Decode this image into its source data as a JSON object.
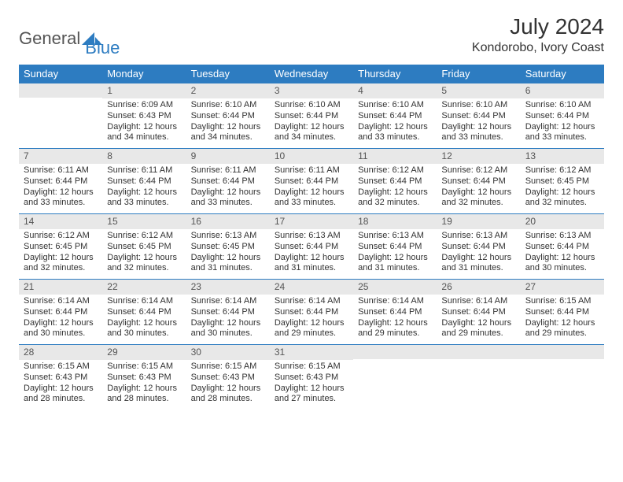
{
  "logo": {
    "text1": "General",
    "text2": "Blue"
  },
  "title": "July 2024",
  "location": "Kondorobo, Ivory Coast",
  "colors": {
    "header_bg": "#2d7cc1",
    "header_text": "#ffffff",
    "daynum_bg": "#e8e8e8",
    "border": "#2d7cc1",
    "text": "#333333"
  },
  "dayNames": [
    "Sunday",
    "Monday",
    "Tuesday",
    "Wednesday",
    "Thursday",
    "Friday",
    "Saturday"
  ],
  "weeks": [
    [
      {
        "n": "",
        "sunrise": "",
        "sunset": "",
        "daylight": ""
      },
      {
        "n": "1",
        "sunrise": "Sunrise: 6:09 AM",
        "sunset": "Sunset: 6:43 PM",
        "daylight": "Daylight: 12 hours and 34 minutes."
      },
      {
        "n": "2",
        "sunrise": "Sunrise: 6:10 AM",
        "sunset": "Sunset: 6:44 PM",
        "daylight": "Daylight: 12 hours and 34 minutes."
      },
      {
        "n": "3",
        "sunrise": "Sunrise: 6:10 AM",
        "sunset": "Sunset: 6:44 PM",
        "daylight": "Daylight: 12 hours and 34 minutes."
      },
      {
        "n": "4",
        "sunrise": "Sunrise: 6:10 AM",
        "sunset": "Sunset: 6:44 PM",
        "daylight": "Daylight: 12 hours and 33 minutes."
      },
      {
        "n": "5",
        "sunrise": "Sunrise: 6:10 AM",
        "sunset": "Sunset: 6:44 PM",
        "daylight": "Daylight: 12 hours and 33 minutes."
      },
      {
        "n": "6",
        "sunrise": "Sunrise: 6:10 AM",
        "sunset": "Sunset: 6:44 PM",
        "daylight": "Daylight: 12 hours and 33 minutes."
      }
    ],
    [
      {
        "n": "7",
        "sunrise": "Sunrise: 6:11 AM",
        "sunset": "Sunset: 6:44 PM",
        "daylight": "Daylight: 12 hours and 33 minutes."
      },
      {
        "n": "8",
        "sunrise": "Sunrise: 6:11 AM",
        "sunset": "Sunset: 6:44 PM",
        "daylight": "Daylight: 12 hours and 33 minutes."
      },
      {
        "n": "9",
        "sunrise": "Sunrise: 6:11 AM",
        "sunset": "Sunset: 6:44 PM",
        "daylight": "Daylight: 12 hours and 33 minutes."
      },
      {
        "n": "10",
        "sunrise": "Sunrise: 6:11 AM",
        "sunset": "Sunset: 6:44 PM",
        "daylight": "Daylight: 12 hours and 33 minutes."
      },
      {
        "n": "11",
        "sunrise": "Sunrise: 6:12 AM",
        "sunset": "Sunset: 6:44 PM",
        "daylight": "Daylight: 12 hours and 32 minutes."
      },
      {
        "n": "12",
        "sunrise": "Sunrise: 6:12 AM",
        "sunset": "Sunset: 6:44 PM",
        "daylight": "Daylight: 12 hours and 32 minutes."
      },
      {
        "n": "13",
        "sunrise": "Sunrise: 6:12 AM",
        "sunset": "Sunset: 6:45 PM",
        "daylight": "Daylight: 12 hours and 32 minutes."
      }
    ],
    [
      {
        "n": "14",
        "sunrise": "Sunrise: 6:12 AM",
        "sunset": "Sunset: 6:45 PM",
        "daylight": "Daylight: 12 hours and 32 minutes."
      },
      {
        "n": "15",
        "sunrise": "Sunrise: 6:12 AM",
        "sunset": "Sunset: 6:45 PM",
        "daylight": "Daylight: 12 hours and 32 minutes."
      },
      {
        "n": "16",
        "sunrise": "Sunrise: 6:13 AM",
        "sunset": "Sunset: 6:45 PM",
        "daylight": "Daylight: 12 hours and 31 minutes."
      },
      {
        "n": "17",
        "sunrise": "Sunrise: 6:13 AM",
        "sunset": "Sunset: 6:44 PM",
        "daylight": "Daylight: 12 hours and 31 minutes."
      },
      {
        "n": "18",
        "sunrise": "Sunrise: 6:13 AM",
        "sunset": "Sunset: 6:44 PM",
        "daylight": "Daylight: 12 hours and 31 minutes."
      },
      {
        "n": "19",
        "sunrise": "Sunrise: 6:13 AM",
        "sunset": "Sunset: 6:44 PM",
        "daylight": "Daylight: 12 hours and 31 minutes."
      },
      {
        "n": "20",
        "sunrise": "Sunrise: 6:13 AM",
        "sunset": "Sunset: 6:44 PM",
        "daylight": "Daylight: 12 hours and 30 minutes."
      }
    ],
    [
      {
        "n": "21",
        "sunrise": "Sunrise: 6:14 AM",
        "sunset": "Sunset: 6:44 PM",
        "daylight": "Daylight: 12 hours and 30 minutes."
      },
      {
        "n": "22",
        "sunrise": "Sunrise: 6:14 AM",
        "sunset": "Sunset: 6:44 PM",
        "daylight": "Daylight: 12 hours and 30 minutes."
      },
      {
        "n": "23",
        "sunrise": "Sunrise: 6:14 AM",
        "sunset": "Sunset: 6:44 PM",
        "daylight": "Daylight: 12 hours and 30 minutes."
      },
      {
        "n": "24",
        "sunrise": "Sunrise: 6:14 AM",
        "sunset": "Sunset: 6:44 PM",
        "daylight": "Daylight: 12 hours and 29 minutes."
      },
      {
        "n": "25",
        "sunrise": "Sunrise: 6:14 AM",
        "sunset": "Sunset: 6:44 PM",
        "daylight": "Daylight: 12 hours and 29 minutes."
      },
      {
        "n": "26",
        "sunrise": "Sunrise: 6:14 AM",
        "sunset": "Sunset: 6:44 PM",
        "daylight": "Daylight: 12 hours and 29 minutes."
      },
      {
        "n": "27",
        "sunrise": "Sunrise: 6:15 AM",
        "sunset": "Sunset: 6:44 PM",
        "daylight": "Daylight: 12 hours and 29 minutes."
      }
    ],
    [
      {
        "n": "28",
        "sunrise": "Sunrise: 6:15 AM",
        "sunset": "Sunset: 6:43 PM",
        "daylight": "Daylight: 12 hours and 28 minutes."
      },
      {
        "n": "29",
        "sunrise": "Sunrise: 6:15 AM",
        "sunset": "Sunset: 6:43 PM",
        "daylight": "Daylight: 12 hours and 28 minutes."
      },
      {
        "n": "30",
        "sunrise": "Sunrise: 6:15 AM",
        "sunset": "Sunset: 6:43 PM",
        "daylight": "Daylight: 12 hours and 28 minutes."
      },
      {
        "n": "31",
        "sunrise": "Sunrise: 6:15 AM",
        "sunset": "Sunset: 6:43 PM",
        "daylight": "Daylight: 12 hours and 27 minutes."
      },
      {
        "n": "",
        "sunrise": "",
        "sunset": "",
        "daylight": ""
      },
      {
        "n": "",
        "sunrise": "",
        "sunset": "",
        "daylight": ""
      },
      {
        "n": "",
        "sunrise": "",
        "sunset": "",
        "daylight": ""
      }
    ]
  ]
}
